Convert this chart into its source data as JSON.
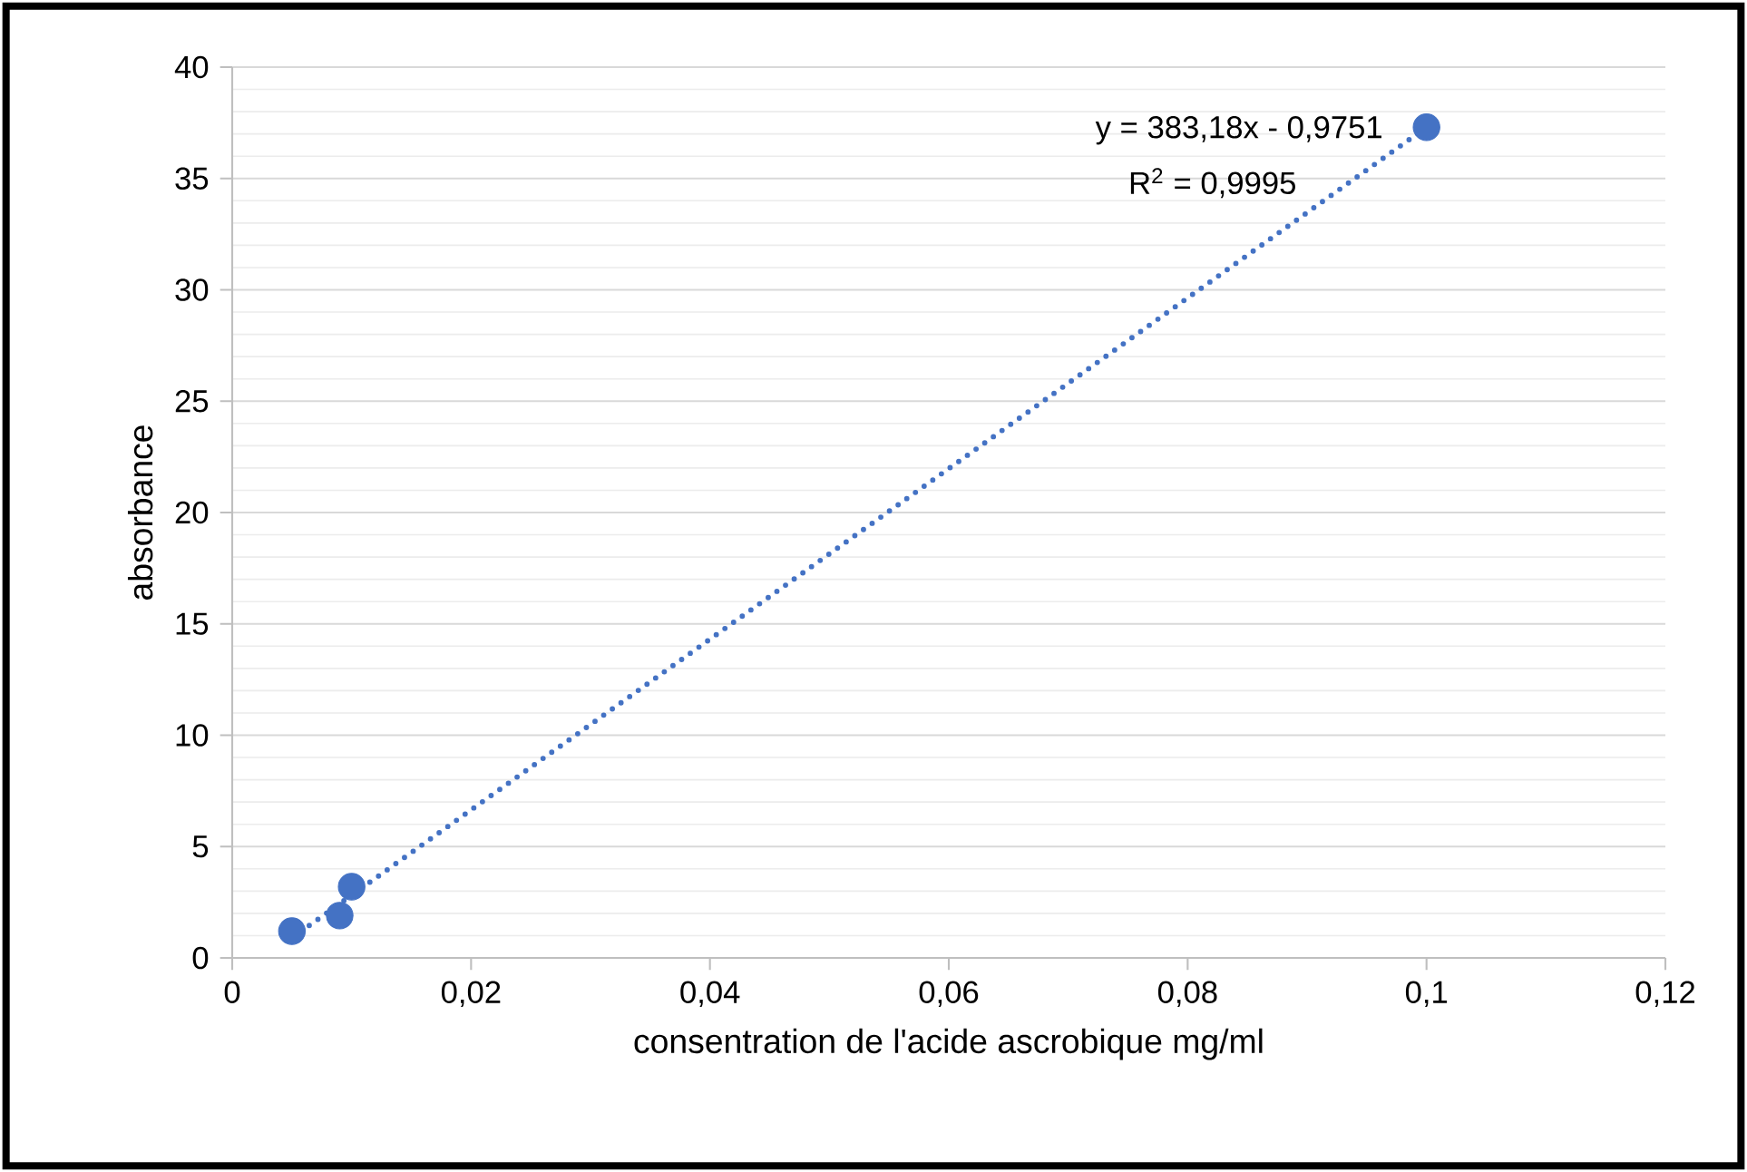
{
  "chart_data": {
    "type": "scatter",
    "xlabel": "consentration de l'acide ascrobique mg/ml",
    "ylabel": "absorbance",
    "series": [
      {
        "color": "#4472c4",
        "marker": "circle",
        "x": [
          0.005,
          0.009,
          0.01,
          0.1
        ],
        "values": [
          1.2,
          1.9,
          3.2,
          37.3
        ]
      },
      {
        "type": "line",
        "color": "#4472c4",
        "marker": "none",
        "line_style": "dotted",
        "x": [
          0.005,
          0.1
        ],
        "values": [
          0.9,
          37.3
        ]
      }
    ],
    "annotations": [
      "y = 383,18x - 0,9751",
      "R$^{2}$ = 0,9995"
    ],
    "xlim": [
      0,
      0.12
    ],
    "xticks": [
      0,
      {
        "value": 0.02,
        "label": "0,02"
      },
      {
        "value": 0.04,
        "label": "0,04"
      },
      {
        "value": 0.06,
        "label": "0,06"
      },
      {
        "value": 0.08,
        "label": "0,08"
      },
      {
        "value": 0.1,
        "label": "0,1"
      },
      {
        "value": 0.12,
        "label": "0,12"
      }
    ],
    "ylim": [
      0,
      40
    ],
    "yticks": [
      0,
      5,
      10,
      15,
      20,
      25,
      30,
      35,
      40
    ],
    "grid": "y"
  }
}
